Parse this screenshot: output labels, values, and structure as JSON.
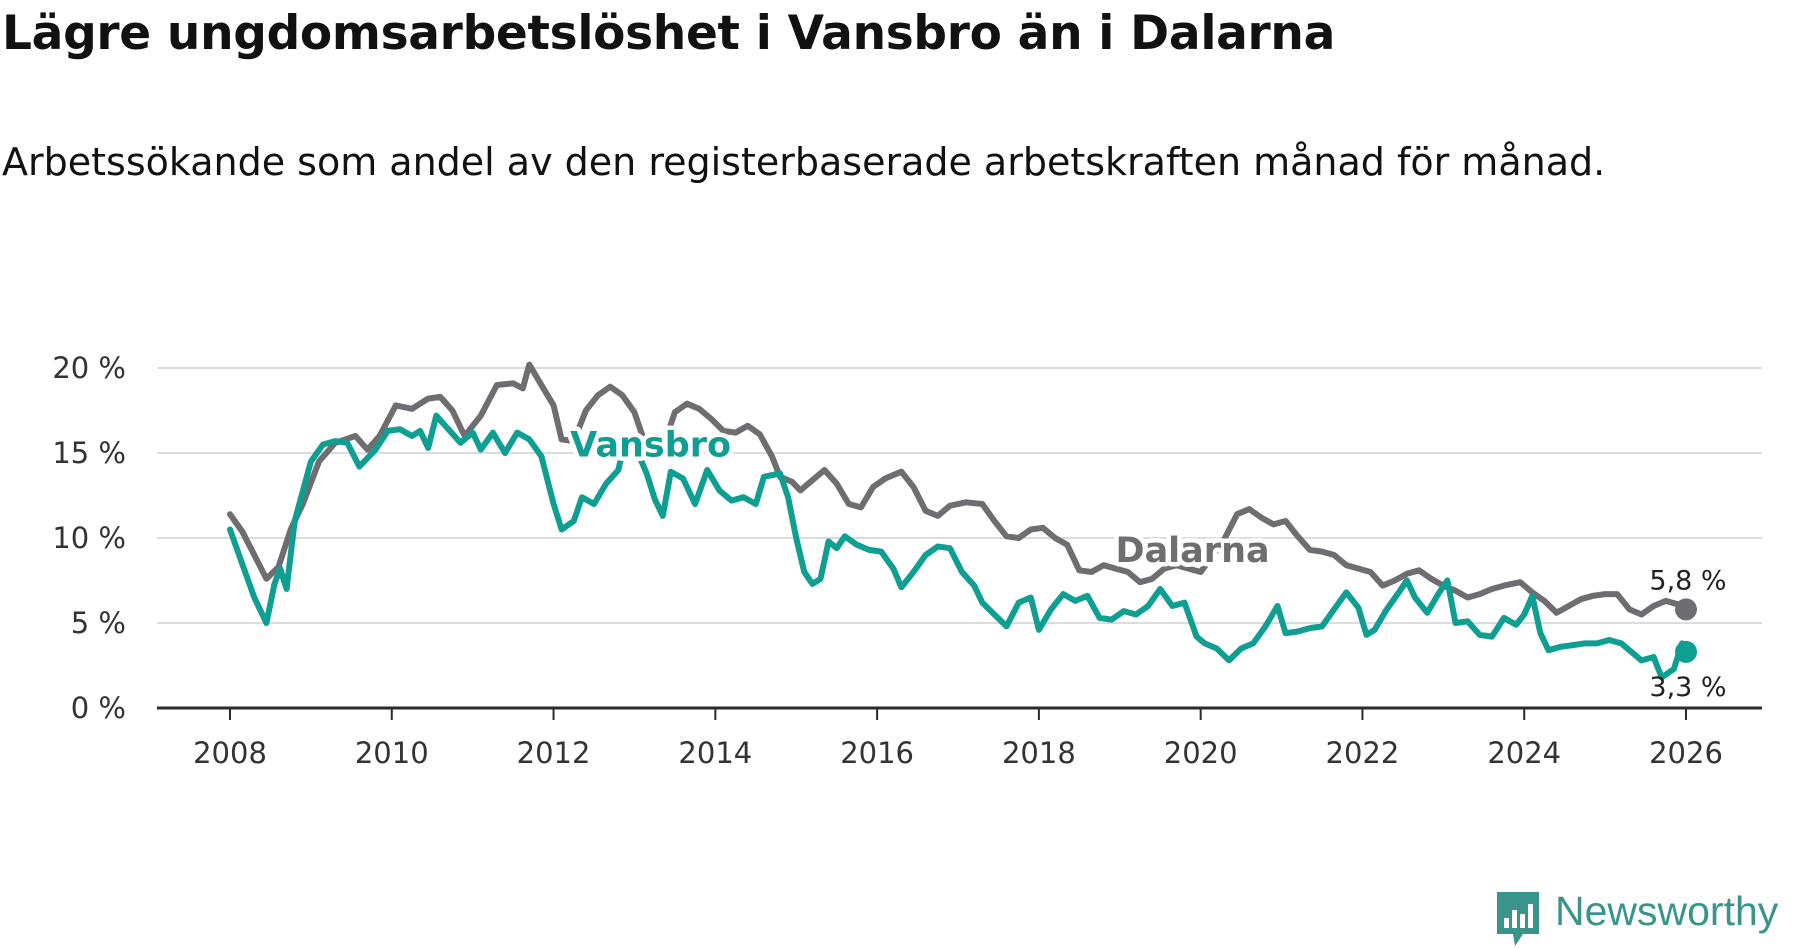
{
  "title": "Lägre ungdomsarbetslöshet i Vansbro än i Dalarna",
  "subtitle": "Arbetssökande som andel av den registerbaserade arbetskraften månad för månad.",
  "brand": {
    "name": "Newsworthy",
    "color": "#3a948c"
  },
  "chart_data": {
    "type": "line",
    "title": "Lägre ungdomsarbetslöshet i Vansbro än i Dalarna",
    "xlabel": "",
    "ylabel": "",
    "xlim": [
      2008,
      2026
    ],
    "ylim": [
      0,
      20
    ],
    "grid": true,
    "x_ticks": [
      "2008",
      "2010",
      "2012",
      "2014",
      "2016",
      "2018",
      "2020",
      "2022",
      "2024",
      "2026"
    ],
    "y_ticks": [
      "0 %",
      "5 %",
      "10 %",
      "15 %",
      "20 %"
    ],
    "series": [
      {
        "name": "Dalarna",
        "color": "#6e6d71",
        "end_label": "5,8 %",
        "label_x": 2019.9,
        "label_y": 8.6,
        "points": [
          [
            2008.0,
            11.4
          ],
          [
            2008.15,
            10.4
          ],
          [
            2008.3,
            9.0
          ],
          [
            2008.45,
            7.6
          ],
          [
            2008.6,
            8.3
          ],
          [
            2008.75,
            10.5
          ],
          [
            2008.9,
            12.0
          ],
          [
            2009.1,
            14.5
          ],
          [
            2009.3,
            15.6
          ],
          [
            2009.55,
            16.0
          ],
          [
            2009.7,
            15.2
          ],
          [
            2009.85,
            16.0
          ],
          [
            2010.05,
            17.8
          ],
          [
            2010.25,
            17.6
          ],
          [
            2010.45,
            18.2
          ],
          [
            2010.6,
            18.3
          ],
          [
            2010.75,
            17.5
          ],
          [
            2010.9,
            16.0
          ],
          [
            2011.1,
            17.2
          ],
          [
            2011.3,
            19.0
          ],
          [
            2011.5,
            19.1
          ],
          [
            2011.62,
            18.8
          ],
          [
            2011.7,
            20.2
          ],
          [
            2011.85,
            19.0
          ],
          [
            2012.0,
            17.8
          ],
          [
            2012.1,
            15.8
          ],
          [
            2012.25,
            15.7
          ],
          [
            2012.4,
            17.5
          ],
          [
            2012.55,
            18.4
          ],
          [
            2012.7,
            18.9
          ],
          [
            2012.85,
            18.4
          ],
          [
            2013.0,
            17.4
          ],
          [
            2013.1,
            16.0
          ],
          [
            2013.2,
            15.3
          ],
          [
            2013.35,
            15.3
          ],
          [
            2013.5,
            17.4
          ],
          [
            2013.65,
            17.9
          ],
          [
            2013.8,
            17.6
          ],
          [
            2013.95,
            17.0
          ],
          [
            2014.1,
            16.3
          ],
          [
            2014.25,
            16.2
          ],
          [
            2014.4,
            16.6
          ],
          [
            2014.55,
            16.1
          ],
          [
            2014.7,
            14.8
          ],
          [
            2014.8,
            13.6
          ],
          [
            2014.95,
            13.3
          ],
          [
            2015.05,
            12.8
          ],
          [
            2015.2,
            13.4
          ],
          [
            2015.35,
            14.0
          ],
          [
            2015.5,
            13.2
          ],
          [
            2015.65,
            12.0
          ],
          [
            2015.8,
            11.8
          ],
          [
            2015.95,
            13.0
          ],
          [
            2016.1,
            13.5
          ],
          [
            2016.3,
            13.9
          ],
          [
            2016.45,
            13.0
          ],
          [
            2016.6,
            11.6
          ],
          [
            2016.75,
            11.3
          ],
          [
            2016.9,
            11.9
          ],
          [
            2017.1,
            12.1
          ],
          [
            2017.3,
            12.0
          ],
          [
            2017.45,
            11.0
          ],
          [
            2017.6,
            10.1
          ],
          [
            2017.75,
            10.0
          ],
          [
            2017.9,
            10.5
          ],
          [
            2018.05,
            10.6
          ],
          [
            2018.2,
            10.0
          ],
          [
            2018.35,
            9.6
          ],
          [
            2018.5,
            8.1
          ],
          [
            2018.65,
            8.0
          ],
          [
            2018.8,
            8.4
          ],
          [
            2018.95,
            8.2
          ],
          [
            2019.1,
            8.0
          ],
          [
            2019.25,
            7.4
          ],
          [
            2019.4,
            7.6
          ],
          [
            2019.55,
            8.2
          ],
          [
            2019.7,
            8.4
          ],
          [
            2019.85,
            8.2
          ],
          [
            2020.0,
            8.0
          ],
          [
            2020.15,
            9.0
          ],
          [
            2020.3,
            10.0
          ],
          [
            2020.45,
            11.4
          ],
          [
            2020.6,
            11.7
          ],
          [
            2020.75,
            11.2
          ],
          [
            2020.9,
            10.8
          ],
          [
            2021.05,
            11.0
          ],
          [
            2021.2,
            10.1
          ],
          [
            2021.35,
            9.3
          ],
          [
            2021.5,
            9.2
          ],
          [
            2021.65,
            9.0
          ],
          [
            2021.8,
            8.4
          ],
          [
            2021.95,
            8.2
          ],
          [
            2022.1,
            8.0
          ],
          [
            2022.25,
            7.2
          ],
          [
            2022.4,
            7.5
          ],
          [
            2022.55,
            7.9
          ],
          [
            2022.7,
            8.1
          ],
          [
            2022.85,
            7.6
          ],
          [
            2023.0,
            7.2
          ],
          [
            2023.15,
            6.9
          ],
          [
            2023.3,
            6.5
          ],
          [
            2023.45,
            6.7
          ],
          [
            2023.6,
            7.0
          ],
          [
            2023.75,
            7.2
          ],
          [
            2023.95,
            7.4
          ],
          [
            2024.1,
            6.8
          ],
          [
            2024.25,
            6.3
          ],
          [
            2024.4,
            5.6
          ],
          [
            2024.55,
            6.0
          ],
          [
            2024.7,
            6.4
          ],
          [
            2024.85,
            6.6
          ],
          [
            2025.0,
            6.7
          ],
          [
            2025.15,
            6.7
          ],
          [
            2025.3,
            5.8
          ],
          [
            2025.45,
            5.5
          ],
          [
            2025.6,
            6.0
          ],
          [
            2025.75,
            6.3
          ],
          [
            2025.9,
            6.1
          ],
          [
            2026.0,
            5.8
          ]
        ]
      },
      {
        "name": "Vansbro",
        "color": "#0f9e92",
        "end_label": "3,3 %",
        "label_x": 2013.2,
        "label_y": 14.8,
        "points": [
          [
            2008.0,
            10.5
          ],
          [
            2008.15,
            8.5
          ],
          [
            2008.3,
            6.5
          ],
          [
            2008.45,
            5.0
          ],
          [
            2008.55,
            7.3
          ],
          [
            2008.62,
            8.2
          ],
          [
            2008.7,
            7.0
          ],
          [
            2008.8,
            11.0
          ],
          [
            2009.0,
            14.5
          ],
          [
            2009.15,
            15.5
          ],
          [
            2009.3,
            15.7
          ],
          [
            2009.45,
            15.6
          ],
          [
            2009.6,
            14.2
          ],
          [
            2009.8,
            15.2
          ],
          [
            2009.95,
            16.3
          ],
          [
            2010.1,
            16.4
          ],
          [
            2010.25,
            16.0
          ],
          [
            2010.35,
            16.3
          ],
          [
            2010.45,
            15.3
          ],
          [
            2010.55,
            17.2
          ],
          [
            2010.7,
            16.4
          ],
          [
            2010.85,
            15.6
          ],
          [
            2011.0,
            16.2
          ],
          [
            2011.1,
            15.2
          ],
          [
            2011.25,
            16.2
          ],
          [
            2011.4,
            15.0
          ],
          [
            2011.55,
            16.2
          ],
          [
            2011.7,
            15.8
          ],
          [
            2011.85,
            14.8
          ],
          [
            2012.0,
            12.0
          ],
          [
            2012.1,
            10.5
          ],
          [
            2012.25,
            11.0
          ],
          [
            2012.35,
            12.4
          ],
          [
            2012.5,
            12.0
          ],
          [
            2012.65,
            13.2
          ],
          [
            2012.8,
            14.0
          ],
          [
            2012.9,
            16.0
          ],
          [
            2013.0,
            15.5
          ],
          [
            2013.15,
            13.8
          ],
          [
            2013.25,
            12.3
          ],
          [
            2013.35,
            11.3
          ],
          [
            2013.45,
            13.9
          ],
          [
            2013.6,
            13.5
          ],
          [
            2013.75,
            12.0
          ],
          [
            2013.9,
            14.0
          ],
          [
            2014.05,
            12.8
          ],
          [
            2014.2,
            12.2
          ],
          [
            2014.35,
            12.4
          ],
          [
            2014.5,
            12.0
          ],
          [
            2014.6,
            13.6
          ],
          [
            2014.8,
            13.8
          ],
          [
            2014.9,
            12.4
          ],
          [
            2015.0,
            10.0
          ],
          [
            2015.1,
            8.0
          ],
          [
            2015.2,
            7.3
          ],
          [
            2015.3,
            7.6
          ],
          [
            2015.4,
            9.8
          ],
          [
            2015.5,
            9.4
          ],
          [
            2015.6,
            10.1
          ],
          [
            2015.75,
            9.6
          ],
          [
            2015.9,
            9.3
          ],
          [
            2016.05,
            9.2
          ],
          [
            2016.2,
            8.2
          ],
          [
            2016.3,
            7.1
          ],
          [
            2016.45,
            8.0
          ],
          [
            2016.6,
            9.0
          ],
          [
            2016.75,
            9.5
          ],
          [
            2016.9,
            9.4
          ],
          [
            2017.05,
            8.0
          ],
          [
            2017.2,
            7.2
          ],
          [
            2017.3,
            6.2
          ],
          [
            2017.45,
            5.5
          ],
          [
            2017.6,
            4.8
          ],
          [
            2017.75,
            6.2
          ],
          [
            2017.9,
            6.5
          ],
          [
            2018.0,
            4.6
          ],
          [
            2018.15,
            5.8
          ],
          [
            2018.3,
            6.7
          ],
          [
            2018.45,
            6.3
          ],
          [
            2018.6,
            6.6
          ],
          [
            2018.75,
            5.3
          ],
          [
            2018.9,
            5.2
          ],
          [
            2019.05,
            5.7
          ],
          [
            2019.2,
            5.5
          ],
          [
            2019.35,
            6.0
          ],
          [
            2019.5,
            7.0
          ],
          [
            2019.65,
            6.0
          ],
          [
            2019.8,
            6.2
          ],
          [
            2019.95,
            4.2
          ],
          [
            2020.05,
            3.8
          ],
          [
            2020.2,
            3.5
          ],
          [
            2020.35,
            2.8
          ],
          [
            2020.5,
            3.5
          ],
          [
            2020.65,
            3.8
          ],
          [
            2020.8,
            4.8
          ],
          [
            2020.95,
            6.0
          ],
          [
            2021.05,
            4.4
          ],
          [
            2021.2,
            4.5
          ],
          [
            2021.35,
            4.7
          ],
          [
            2021.5,
            4.8
          ],
          [
            2021.65,
            5.8
          ],
          [
            2021.8,
            6.8
          ],
          [
            2021.95,
            5.9
          ],
          [
            2022.05,
            4.3
          ],
          [
            2022.15,
            4.6
          ],
          [
            2022.3,
            5.8
          ],
          [
            2022.45,
            6.8
          ],
          [
            2022.55,
            7.5
          ],
          [
            2022.65,
            6.5
          ],
          [
            2022.8,
            5.6
          ],
          [
            2022.95,
            6.8
          ],
          [
            2023.05,
            7.5
          ],
          [
            2023.15,
            5.0
          ],
          [
            2023.3,
            5.1
          ],
          [
            2023.45,
            4.3
          ],
          [
            2023.6,
            4.2
          ],
          [
            2023.75,
            5.3
          ],
          [
            2023.9,
            4.9
          ],
          [
            2024.0,
            5.5
          ],
          [
            2024.1,
            6.6
          ],
          [
            2024.2,
            4.4
          ],
          [
            2024.3,
            3.4
          ],
          [
            2024.45,
            3.6
          ],
          [
            2024.6,
            3.7
          ],
          [
            2024.75,
            3.8
          ],
          [
            2024.9,
            3.8
          ],
          [
            2025.05,
            4.0
          ],
          [
            2025.2,
            3.8
          ],
          [
            2025.35,
            3.2
          ],
          [
            2025.45,
            2.8
          ],
          [
            2025.6,
            3.0
          ],
          [
            2025.7,
            1.8
          ],
          [
            2025.85,
            2.3
          ],
          [
            2025.95,
            3.8
          ],
          [
            2026.0,
            3.3
          ]
        ]
      }
    ]
  }
}
